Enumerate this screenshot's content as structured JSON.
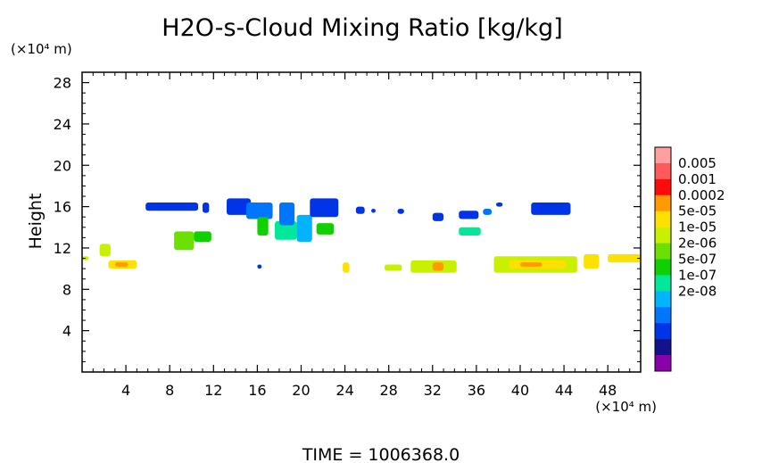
{
  "chart_data": {
    "type": "heatmap",
    "title": "H2O-s-Cloud Mixing Ratio [kg/kg]",
    "ylabel": "Height",
    "y_unit": "(×10⁴ m)",
    "x_unit": "(×10⁴ m)",
    "footer": "TIME = 1006368.0",
    "xlim": [
      0,
      51
    ],
    "ylim": [
      0,
      29
    ],
    "xticks": [
      "4",
      "8",
      "12",
      "16",
      "20",
      "24",
      "28",
      "32",
      "36",
      "40",
      "44",
      "48"
    ],
    "xtick_values": [
      4,
      8,
      12,
      16,
      20,
      24,
      28,
      32,
      36,
      40,
      44,
      48
    ],
    "yticks": [
      "4",
      "8",
      "12",
      "16",
      "20",
      "24",
      "28"
    ],
    "ytick_values": [
      4,
      8,
      12,
      16,
      20,
      24,
      28
    ],
    "colorbar": {
      "labels": [
        "0.005",
        "0.001",
        "0.0002",
        "5e-05",
        "1e-05",
        "2e-06",
        "5e-07",
        "1e-07",
        "2e-08"
      ],
      "colors": [
        "#ff9f9f",
        "#ff5a5a",
        "#ff0a0a",
        "#ff9a00",
        "#ffe000",
        "#c8f000",
        "#6ce000",
        "#10d000",
        "#00e898",
        "#00b4ff",
        "#0076ff",
        "#0034e8",
        "#12128c",
        "#8a00aa"
      ]
    },
    "regions": [
      {
        "x0": 5.8,
        "x1": 10.6,
        "y0": 15.6,
        "y1": 16.4,
        "color": "#0034e8"
      },
      {
        "x0": 11.0,
        "x1": 11.6,
        "y0": 15.4,
        "y1": 16.4,
        "color": "#0034e8"
      },
      {
        "x0": 13.2,
        "x1": 15.4,
        "y0": 15.2,
        "y1": 16.8,
        "color": "#0034e8"
      },
      {
        "x0": 15.0,
        "x1": 17.4,
        "y0": 14.8,
        "y1": 16.4,
        "color": "#0076ff"
      },
      {
        "x0": 16.0,
        "x1": 17.0,
        "y0": 13.2,
        "y1": 15.0,
        "color": "#10d000"
      },
      {
        "x0": 17.6,
        "x1": 19.6,
        "y0": 12.8,
        "y1": 14.6,
        "color": "#00e898"
      },
      {
        "x0": 18.0,
        "x1": 19.4,
        "y0": 14.2,
        "y1": 16.4,
        "color": "#0076ff"
      },
      {
        "x0": 19.6,
        "x1": 21.0,
        "y0": 12.6,
        "y1": 15.2,
        "color": "#00b4ff"
      },
      {
        "x0": 20.8,
        "x1": 23.4,
        "y0": 15.0,
        "y1": 16.8,
        "color": "#0034e8"
      },
      {
        "x0": 21.4,
        "x1": 23.0,
        "y0": 13.3,
        "y1": 14.4,
        "color": "#10d000"
      },
      {
        "x0": 25.0,
        "x1": 25.8,
        "y0": 15.3,
        "y1": 16.0,
        "color": "#0034e8"
      },
      {
        "x0": 28.8,
        "x1": 29.4,
        "y0": 15.3,
        "y1": 15.8,
        "color": "#0034e8"
      },
      {
        "x0": 32.0,
        "x1": 33.0,
        "y0": 14.6,
        "y1": 15.4,
        "color": "#0034e8"
      },
      {
        "x0": 34.4,
        "x1": 36.2,
        "y0": 14.8,
        "y1": 15.6,
        "color": "#0034e8"
      },
      {
        "x0": 36.6,
        "x1": 37.4,
        "y0": 15.2,
        "y1": 15.8,
        "color": "#0076ff"
      },
      {
        "x0": 37.8,
        "x1": 38.4,
        "y0": 16.0,
        "y1": 16.4,
        "color": "#0034e8"
      },
      {
        "x0": 41.0,
        "x1": 44.6,
        "y0": 15.2,
        "y1": 16.4,
        "color": "#0034e8"
      },
      {
        "x0": 34.4,
        "x1": 36.4,
        "y0": 13.2,
        "y1": 14.0,
        "color": "#00e898"
      },
      {
        "x0": 8.4,
        "x1": 10.2,
        "y0": 11.8,
        "y1": 13.6,
        "color": "#6ce000"
      },
      {
        "x0": 10.2,
        "x1": 11.8,
        "y0": 12.6,
        "y1": 13.6,
        "color": "#10d000"
      },
      {
        "x0": 1.6,
        "x1": 2.6,
        "y0": 11.2,
        "y1": 12.4,
        "color": "#c8f000"
      },
      {
        "x0": 0.0,
        "x1": 0.6,
        "y0": 10.8,
        "y1": 11.2,
        "color": "#c8f000"
      },
      {
        "x0": 2.4,
        "x1": 5.0,
        "y0": 10.0,
        "y1": 10.8,
        "color": "#ffe000"
      },
      {
        "x0": 3.0,
        "x1": 4.2,
        "y0": 10.2,
        "y1": 10.6,
        "color": "#ff9a00"
      },
      {
        "x0": 23.8,
        "x1": 24.4,
        "y0": 9.6,
        "y1": 10.6,
        "color": "#ffe000"
      },
      {
        "x0": 27.6,
        "x1": 29.2,
        "y0": 9.8,
        "y1": 10.4,
        "color": "#c8f000"
      },
      {
        "x0": 30.0,
        "x1": 34.2,
        "y0": 9.6,
        "y1": 10.8,
        "color": "#c8f000"
      },
      {
        "x0": 32.0,
        "x1": 33.0,
        "y0": 9.8,
        "y1": 10.6,
        "color": "#ff9a00"
      },
      {
        "x0": 37.6,
        "x1": 45.2,
        "y0": 9.6,
        "y1": 11.2,
        "color": "#c8f000"
      },
      {
        "x0": 39.0,
        "x1": 44.2,
        "y0": 10.0,
        "y1": 10.8,
        "color": "#ffe000"
      },
      {
        "x0": 40.0,
        "x1": 42.0,
        "y0": 10.2,
        "y1": 10.6,
        "color": "#ff9a00"
      },
      {
        "x0": 45.8,
        "x1": 47.2,
        "y0": 10.0,
        "y1": 11.4,
        "color": "#ffe000"
      },
      {
        "x0": 48.0,
        "x1": 51.0,
        "y0": 10.6,
        "y1": 11.4,
        "color": "#ffe000"
      },
      {
        "x0": 16.0,
        "x1": 16.4,
        "y0": 10.0,
        "y1": 10.4,
        "color": "#0034e8"
      },
      {
        "x0": 26.4,
        "x1": 26.8,
        "y0": 15.4,
        "y1": 15.8,
        "color": "#0034e8"
      }
    ]
  }
}
